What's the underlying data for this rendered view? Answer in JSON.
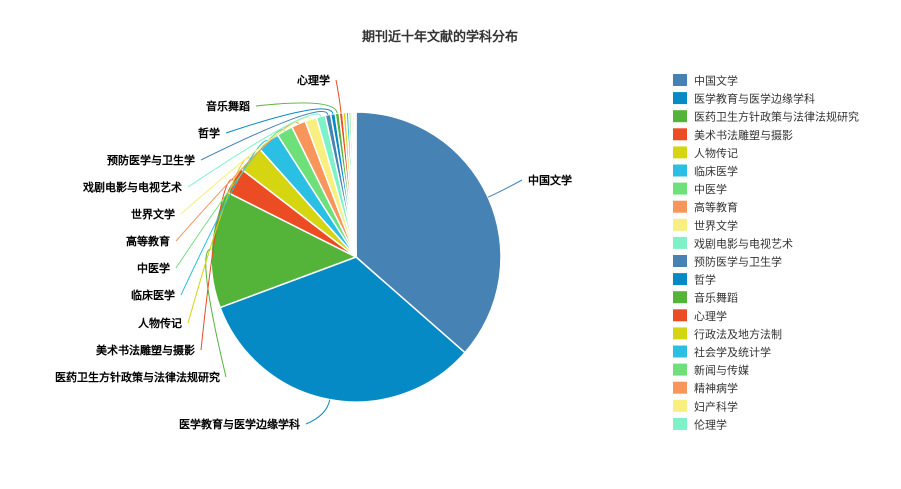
{
  "chart_data": {
    "type": "pie",
    "title": "期刊近十年文献的学科分布",
    "legend_position": "right",
    "slices": [
      {
        "label": "中国文学",
        "value": 36.5,
        "color": "#4682b4"
      },
      {
        "label": "医学教育与医学边缘学科",
        "value": 32.9,
        "color": "#068ac6"
      },
      {
        "label": "医药卫生方针政策与法律法规研究",
        "value": 13.1,
        "color": "#54b43a"
      },
      {
        "label": "美术书法雕塑与摄影",
        "value": 3.0,
        "color": "#eb4c23"
      },
      {
        "label": "人物传记",
        "value": 3.0,
        "color": "#d5d511"
      },
      {
        "label": "临床医学",
        "value": 2.5,
        "color": "#2bc0e3"
      },
      {
        "label": "中医学",
        "value": 1.8,
        "color": "#6de07a"
      },
      {
        "label": "高等教育",
        "value": 1.6,
        "color": "#f7955a"
      },
      {
        "label": "世界文学",
        "value": 1.3,
        "color": "#f8ef7f"
      },
      {
        "label": "戏剧电影与电视艺术",
        "value": 1.0,
        "color": "#7df2c9"
      },
      {
        "label": "预防医学与卫生学",
        "value": 0.6,
        "color": "#4682b4"
      },
      {
        "label": "哲学",
        "value": 0.5,
        "color": "#068ac6"
      },
      {
        "label": "音乐舞蹈",
        "value": 0.45,
        "color": "#54b43a"
      },
      {
        "label": "心理学",
        "value": 0.4,
        "color": "#eb4c23"
      },
      {
        "label": "行政法及地方法制",
        "value": 0.35,
        "color": "#d5d511"
      },
      {
        "label": "社会学及统计学",
        "value": 0.3,
        "color": "#2bc0e3"
      },
      {
        "label": "新闻与传媒",
        "value": 0.25,
        "color": "#6de07a"
      },
      {
        "label": "精神病学",
        "value": 0.2,
        "color": "#f7955a"
      },
      {
        "label": "妇产科学",
        "value": 0.2,
        "color": "#f8ef7f"
      },
      {
        "label": "伦理学",
        "value": 0.15,
        "color": "#7df2c9"
      }
    ],
    "callout_labels": [
      "中国文学",
      "医学教育与医学边缘学科",
      "医药卫生方针政策与法律法规研究",
      "美术书法雕塑与摄影",
      "人物传记",
      "临床医学",
      "中医学",
      "高等教育",
      "世界文学",
      "戏剧电影与电视艺术",
      "预防医学与卫生学",
      "哲学",
      "音乐舞蹈",
      "心理学"
    ]
  }
}
